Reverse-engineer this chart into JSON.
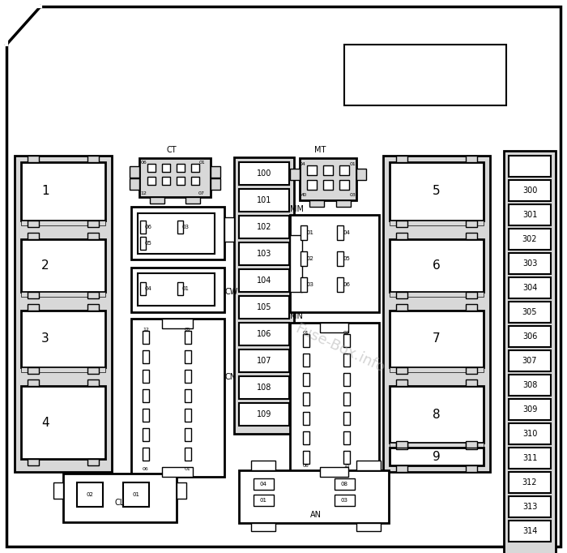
{
  "bg_color": "#ffffff",
  "light_gray": "#d8d8d8",
  "fig_width": 7.0,
  "fig_height": 6.82,
  "fuse_numbers_300_314": [
    "300",
    "301",
    "302",
    "303",
    "304",
    "305",
    "306",
    "307",
    "308",
    "309",
    "310",
    "311",
    "312",
    "313",
    "314"
  ],
  "fuse_numbers_100_109": [
    "100",
    "101",
    "102",
    "103",
    "104",
    "105",
    "106",
    "107",
    "108",
    "109"
  ],
  "watermark": "Fuse-Box.info"
}
